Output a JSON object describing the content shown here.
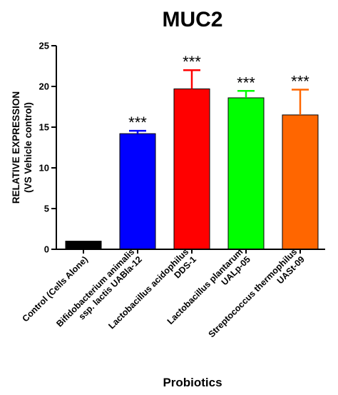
{
  "chart_data": {
    "type": "bar",
    "title": "MUC2",
    "xlabel": "Probiotics",
    "ylabel": [
      "RELATIVE EXPRESSION",
      "(VS Vehicle control)"
    ],
    "ylim": [
      0,
      25
    ],
    "yticks": [
      0,
      5,
      10,
      15,
      20,
      25
    ],
    "grid": false,
    "legend": "none",
    "categories": [
      [
        "Control (Cells Alone)"
      ],
      [
        "Bifidobacterium animalis",
        "ssp. lactis UABla-12"
      ],
      [
        "Lactobacillus acidophilus",
        "DDS-1"
      ],
      [
        "Lactobacillus plantarum",
        "UALp-05"
      ],
      [
        "Streptococcus thermophilus",
        "UASt-09"
      ]
    ],
    "values": [
      1.0,
      14.2,
      19.7,
      18.6,
      16.5
    ],
    "errors": [
      0.0,
      0.35,
      2.3,
      0.85,
      3.1
    ],
    "significance": [
      "",
      "***",
      "***",
      "***",
      "***"
    ],
    "colors": [
      "#000000",
      "#0000ff",
      "#ff0000",
      "#00ff00",
      "#ff6600"
    ]
  }
}
